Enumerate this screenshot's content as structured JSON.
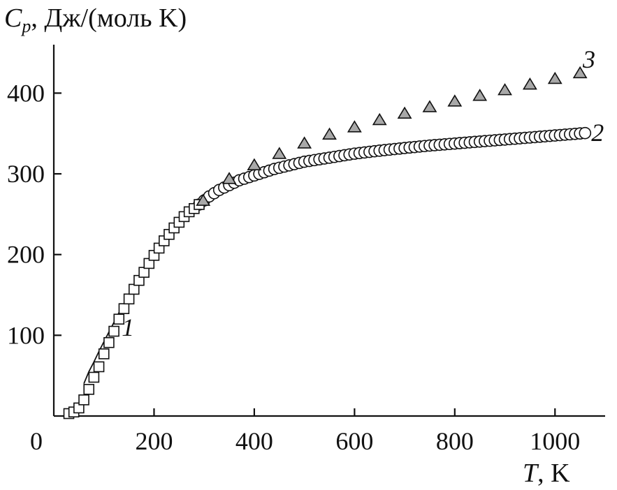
{
  "chart_data": {
    "type": "scatter",
    "title": "",
    "ylabel_main": "C",
    "ylabel_sub": "p",
    "ylabel_rest": ", Дж/(моль K)",
    "xlabel_main": "T",
    "xlabel_rest": ", K",
    "xlim": [
      0,
      1100
    ],
    "ylim": [
      0,
      460
    ],
    "x_ticks": [
      0,
      200,
      400,
      600,
      800,
      1000
    ],
    "x_tick_labels": [
      "0",
      "200",
      "400",
      "600",
      "800",
      "1000"
    ],
    "y_ticks": [
      100,
      200,
      300,
      400
    ],
    "y_tick_labels": [
      "100",
      "200",
      "300",
      "400"
    ],
    "series": [
      {
        "name": "1",
        "marker": "square",
        "x": [
          30,
          40,
          50,
          60,
          70,
          80,
          90,
          100,
          110,
          120,
          130,
          140,
          150,
          160,
          170,
          180,
          190,
          200,
          210,
          220,
          230,
          240,
          250,
          260,
          270,
          280,
          290
        ],
        "y": [
          3,
          5,
          10,
          20,
          33,
          48,
          61,
          77,
          91,
          105,
          120,
          133,
          145,
          157,
          168,
          178,
          189,
          199,
          208,
          217,
          225,
          233,
          240,
          247,
          253,
          257,
          262
        ]
      },
      {
        "name": "2",
        "marker": "circle",
        "x": [
          290,
          300,
          310,
          320,
          330,
          340,
          350,
          360,
          370,
          380,
          390,
          400,
          410,
          420,
          430,
          440,
          450,
          460,
          470,
          480,
          490,
          500,
          510,
          520,
          530,
          540,
          550,
          560,
          570,
          580,
          590,
          600,
          610,
          620,
          630,
          640,
          650,
          660,
          670,
          680,
          690,
          700,
          710,
          720,
          730,
          740,
          750,
          760,
          770,
          780,
          790,
          800,
          810,
          820,
          830,
          840,
          850,
          860,
          870,
          880,
          890,
          900,
          910,
          920,
          930,
          940,
          950,
          960,
          970,
          980,
          990,
          1000,
          1010,
          1020,
          1030,
          1040,
          1050,
          1060
        ],
        "y": [
          262,
          267,
          272,
          276,
          280,
          283,
          286,
          289,
          292,
          294,
          296,
          298,
          300,
          302,
          304,
          306,
          307.5,
          309,
          310.5,
          312,
          313.5,
          315,
          316,
          317,
          318,
          319,
          320,
          321,
          322,
          323,
          324,
          325,
          325.7,
          326.5,
          327.2,
          328,
          328.7,
          329.4,
          330,
          330.7,
          331.3,
          332,
          332.6,
          333.2,
          333.8,
          334.4,
          335,
          335.5,
          336,
          336.5,
          337,
          337.5,
          338,
          338.5,
          339,
          339.5,
          340,
          340.5,
          341,
          341.5,
          342,
          342.5,
          343,
          343.5,
          344,
          344.5,
          345,
          345.5,
          346,
          346.5,
          347,
          347.5,
          348,
          348.5,
          349,
          349.5,
          350,
          350.5
        ]
      },
      {
        "name": "3",
        "marker": "triangle",
        "x": [
          298,
          350,
          400,
          450,
          500,
          550,
          600,
          650,
          700,
          750,
          800,
          850,
          900,
          950,
          1000,
          1050
        ],
        "y": [
          266,
          293,
          310,
          324,
          337,
          348,
          357,
          366,
          374,
          382,
          389,
          396,
          403,
          410,
          417,
          424
        ]
      }
    ],
    "fit_curve": {
      "x": [
        60,
        70,
        80,
        90,
        100,
        110,
        120,
        130,
        140,
        150,
        160,
        170,
        180,
        190,
        200,
        210,
        220,
        230,
        240,
        250,
        260,
        270,
        280,
        290,
        300,
        320,
        340,
        360,
        380,
        400
      ],
      "y": [
        40,
        55,
        67,
        80,
        92,
        104,
        116,
        128,
        139,
        150,
        161,
        171,
        181,
        190,
        200,
        209,
        218,
        226,
        233,
        240,
        246,
        252,
        257,
        262,
        266,
        275,
        283,
        290,
        295,
        300
      ]
    },
    "annotations": [
      {
        "text": "1",
        "x": 148,
        "y": 110
      },
      {
        "text": "2",
        "x": 1085,
        "y": 351
      },
      {
        "text": "3",
        "x": 1068,
        "y": 442
      }
    ]
  }
}
